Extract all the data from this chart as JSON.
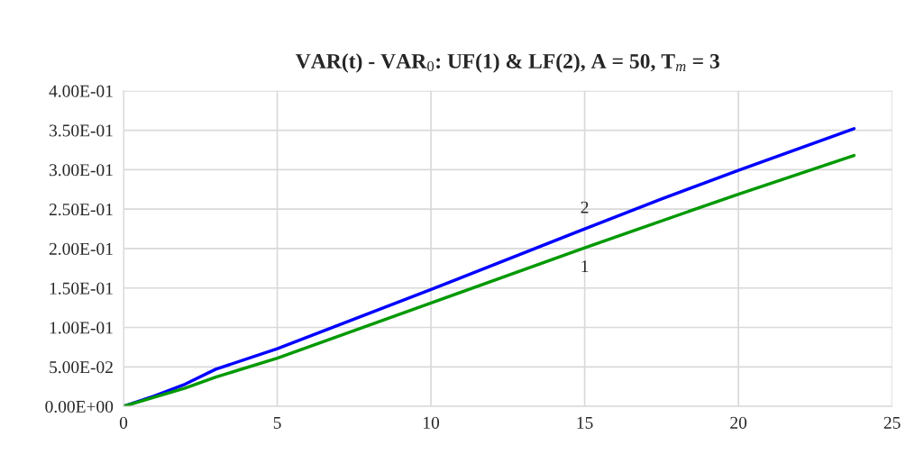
{
  "chart_data": {
    "type": "line",
    "title": "VAR(t) - VAR$_{0}$: UF(1) & LF(2), A = 50, T$_{m}$ = 3",
    "series": [
      {
        "color": "#0000ff",
        "x": [
          0,
          1,
          2,
          3,
          5,
          10,
          15,
          17.5,
          20,
          23.76
        ],
        "values": [
          0,
          0.013,
          0.028,
          0.047,
          0.073,
          0.148,
          0.225,
          0.263,
          0.299,
          0.352
        ]
      },
      {
        "color": "#009900",
        "x": [
          0,
          2,
          3,
          5,
          10,
          15,
          20,
          23.76
        ],
        "values": [
          0,
          0.023,
          0.037,
          0.061,
          0.131,
          0.201,
          0.269,
          0.318
        ]
      }
    ],
    "annotations": [
      {
        "text": "2",
        "x": 15,
        "y": 0.225
      },
      {
        "text": "1",
        "x": 15,
        "y": 0.201
      }
    ],
    "xlim": [
      0,
      25
    ],
    "xticks": [
      0,
      5,
      10,
      15,
      20,
      25
    ],
    "ylim": [
      0,
      0.4
    ],
    "yticks": [
      {
        "value": 0,
        "label": "0.00E+00"
      },
      {
        "value": 0.05,
        "label": "5.00E-02"
      },
      {
        "value": 0.1,
        "label": "1.00E-01"
      },
      {
        "value": 0.15,
        "label": "1.50E-01"
      },
      {
        "value": 0.2,
        "label": "2.00E-01"
      },
      {
        "value": 0.25,
        "label": "2.50E-01"
      },
      {
        "value": 0.3,
        "label": "3.00E-01"
      },
      {
        "value": 0.35,
        "label": "3.50E-01"
      },
      {
        "value": 0.4,
        "label": "4.00E-01"
      }
    ],
    "grid": true,
    "line_style": "solid"
  }
}
